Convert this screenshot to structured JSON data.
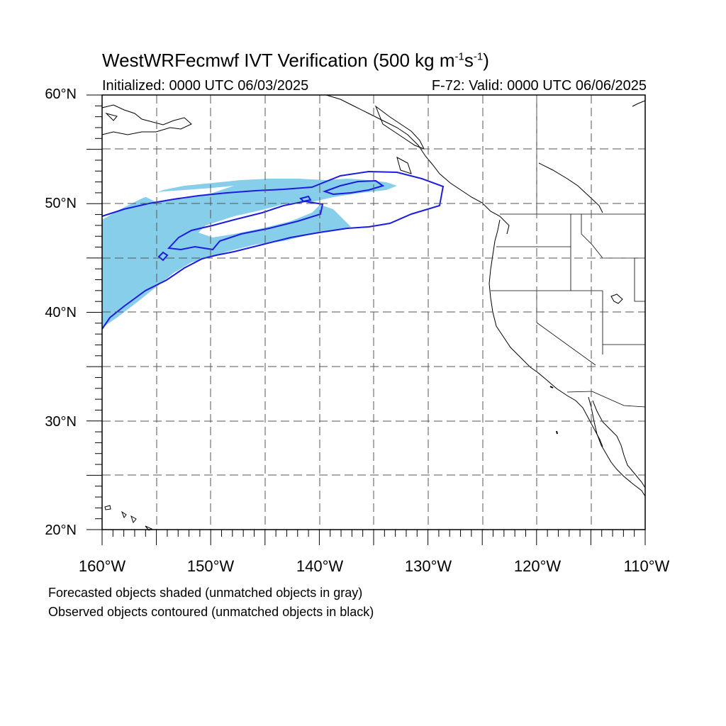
{
  "title": {
    "main": "WestWRFecmwf IVT Verification (500 kg m",
    "sup1": "-1",
    "mid": "s",
    "sup2": "-1",
    "end": ")"
  },
  "subtitle_left": "Initialized: 0000 UTC 06/03/2025",
  "subtitle_right": "F-72: Valid: 0000 UTC 06/06/2025",
  "lat_labels": [
    {
      "text": "60°N",
      "lat": 60
    },
    {
      "text": "50°N",
      "lat": 50
    },
    {
      "text": "40°N",
      "lat": 40
    },
    {
      "text": "30°N",
      "lat": 30
    },
    {
      "text": "20°N",
      "lat": 20
    }
  ],
  "lon_labels": [
    {
      "text": "160°W",
      "lon": -160
    },
    {
      "text": "150°W",
      "lon": -150
    },
    {
      "text": "140°W",
      "lon": -140
    },
    {
      "text": "130°W",
      "lon": -130
    },
    {
      "text": "120°W",
      "lon": -120
    },
    {
      "text": "110°W",
      "lon": -110
    }
  ],
  "notes": [
    "Forecasted objects shaded (unmatched objects in gray)",
    "Observed objects contoured (unmatched objects in black)"
  ],
  "map_extent": {
    "lon_min": -160,
    "lon_max": -110,
    "lat_min": 20,
    "lat_max": 60
  },
  "colors": {
    "forecast_fill": "#87ceeb",
    "observed_contour": "#1c1ce0",
    "coastline": "#000000",
    "grid": "#555555"
  }
}
